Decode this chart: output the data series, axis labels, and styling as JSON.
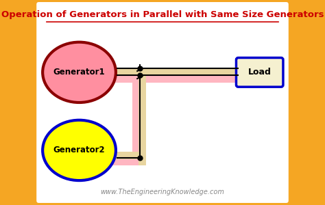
{
  "title": "Operation of Generators in Parallel with Same Size Generators",
  "title_color": "#cc0000",
  "title_fontsize": 9.5,
  "bg_outer": "#f5a623",
  "bg_inner": "#ffffff",
  "gen1_label": "Generator1",
  "gen2_label": "Generator2",
  "load_label": "Load",
  "gen1_fill": "#ff8fa0",
  "gen1_edge": "#8b0000",
  "gen2_fill": "#ffff00",
  "gen2_edge": "#0000cd",
  "load_fill": "#f5f0d0",
  "load_edge": "#0000cd",
  "bus_fill_pink": "#ffb6c1",
  "bus_fill_tan": "#e8d5a0",
  "wire_color": "#000000",
  "watermark": "www.TheEngineeringKnowledge.com",
  "watermark_color": "#888888",
  "watermark_fontsize": 7
}
